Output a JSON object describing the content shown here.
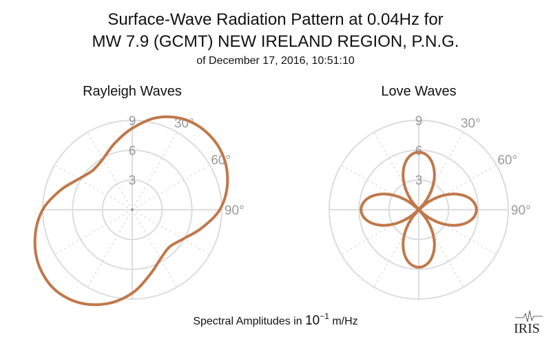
{
  "title_line1": "Surface-Wave Radiation Pattern at 0.04Hz for",
  "title_line2": "MW 7.9 (GCMT) NEW IRELAND REGION, P.N.G.",
  "subtitle": "of December 17, 2016, 10:51:10",
  "footer": {
    "prefix": "Spectral Amplitudes in ",
    "base": "10",
    "exponent": "−1",
    "suffix": " m/Hz"
  },
  "logo_text": "IRIS",
  "colors": {
    "curve": "#c0784a",
    "grid": "#dcdcdc",
    "label": "#999999"
  },
  "chart_data": [
    {
      "type": "polar-line",
      "title": "Rayleigh Waves",
      "r_ticks": [
        "3",
        "6",
        "9"
      ],
      "r_tick_values": [
        3,
        6,
        9
      ],
      "angle_labels": [
        "30°",
        "60°",
        "90°"
      ],
      "angle_label_values": [
        30,
        60,
        90
      ],
      "rlim": [
        0,
        9
      ],
      "angle_step": 15,
      "theta": [
        0,
        15,
        30,
        45,
        60,
        75,
        90,
        105,
        120,
        135,
        150,
        165,
        180,
        195,
        210,
        225,
        240,
        255,
        270,
        285,
        300,
        315,
        330,
        345
      ],
      "r": [
        8.2,
        9.6,
        10.5,
        10.8,
        10.6,
        9.9,
        8.8,
        7.2,
        5.9,
        5.3,
        5.7,
        6.8,
        8.4,
        9.8,
        10.8,
        11.2,
        10.9,
        10.1,
        9.0,
        7.5,
        6.2,
        5.6,
        5.9,
        6.9
      ]
    },
    {
      "type": "polar-line",
      "title": "Love Waves",
      "r_ticks": [
        "3",
        "6",
        "9"
      ],
      "r_tick_values": [
        3,
        6,
        9
      ],
      "angle_labels": [
        "30°",
        "60°",
        "90°"
      ],
      "angle_label_values": [
        30,
        60,
        90
      ],
      "rlim": [
        0,
        9
      ],
      "angle_step": 5,
      "r": [
        5.8,
        5.71,
        5.45,
        5.02,
        4.44,
        3.73,
        2.9,
        1.98,
        1.01,
        0,
        1.01,
        1.98,
        2.9,
        3.73,
        4.44,
        5.02,
        5.45,
        5.71,
        5.8,
        5.71,
        5.45,
        5.02,
        4.44,
        3.73,
        2.9,
        1.98,
        1.01,
        0,
        1.01,
        1.98,
        2.9,
        3.73,
        4.44,
        5.02,
        5.45,
        5.71,
        5.8,
        5.71,
        5.45,
        5.02,
        4.44,
        3.73,
        2.9,
        1.98,
        1.01,
        0,
        1.01,
        1.98,
        2.9,
        3.73,
        4.44,
        5.02,
        5.45,
        5.71,
        5.8,
        5.71,
        5.45,
        5.02,
        4.44,
        3.73,
        2.9,
        1.98,
        1.01,
        0,
        1.01,
        1.98,
        2.9,
        3.73,
        4.44,
        5.02,
        5.45,
        5.71
      ]
    }
  ]
}
